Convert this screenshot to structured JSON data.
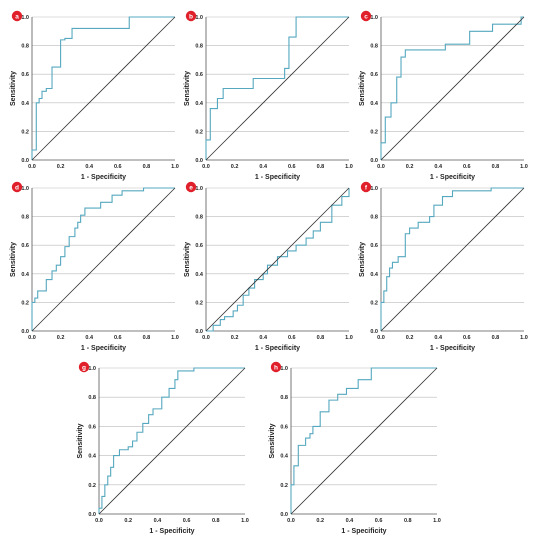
{
  "axes": {
    "xlabel": "1 - Specificity",
    "ylabel": "Sensitivity",
    "xlim": [
      0,
      1.0
    ],
    "ylim": [
      0,
      1.0
    ],
    "x_ticks": [
      "0.0",
      "0.2",
      "0.4",
      "0.6",
      "0.8",
      "1.0"
    ],
    "y_ticks": [
      "0.0",
      "0.2",
      "0.4",
      "0.6",
      "0.8",
      "1.0"
    ]
  },
  "colors": {
    "roc": "#55a8bf",
    "reference": "#333333",
    "grid": "#bbbbbb",
    "badge": "#e0202a"
  },
  "chart_data": [
    {
      "type": "line",
      "panel": "a",
      "grid": true,
      "series": [
        {
          "x": [
            0,
            0,
            0.03,
            0.03,
            0.05,
            0.05,
            0.07,
            0.07,
            0.1,
            0.1,
            0.14,
            0.14,
            0.2,
            0.2,
            0.23,
            0.23,
            0.28,
            0.28,
            0.68,
            0.68,
            0.85,
            0.85,
            1.0
          ],
          "y": [
            0,
            0.07,
            0.07,
            0.4,
            0.4,
            0.43,
            0.43,
            0.48,
            0.48,
            0.5,
            0.5,
            0.65,
            0.65,
            0.84,
            0.84,
            0.85,
            0.85,
            0.92,
            0.92,
            1.0,
            1.0,
            1.0,
            1.0
          ]
        },
        {
          "x": [
            0,
            1
          ],
          "y": [
            0,
            1
          ]
        }
      ]
    },
    {
      "type": "line",
      "panel": "b",
      "grid": true,
      "series": [
        {
          "x": [
            0,
            0,
            0.03,
            0.03,
            0.08,
            0.08,
            0.12,
            0.12,
            0.24,
            0.24,
            0.33,
            0.33,
            0.55,
            0.55,
            0.58,
            0.58,
            0.63,
            0.63,
            1.0
          ],
          "y": [
            0,
            0.14,
            0.14,
            0.36,
            0.36,
            0.43,
            0.43,
            0.5,
            0.5,
            0.5,
            0.5,
            0.57,
            0.57,
            0.64,
            0.64,
            0.86,
            0.86,
            1.0,
            1.0
          ]
        },
        {
          "x": [
            0,
            1
          ],
          "y": [
            0,
            1
          ]
        }
      ]
    },
    {
      "type": "line",
      "panel": "c",
      "grid": true,
      "series": [
        {
          "x": [
            0,
            0,
            0.03,
            0.03,
            0.07,
            0.07,
            0.11,
            0.11,
            0.14,
            0.14,
            0.17,
            0.17,
            0.45,
            0.45,
            0.62,
            0.62,
            0.78,
            0.78,
            0.98,
            0.98,
            1.0
          ],
          "y": [
            0,
            0.12,
            0.12,
            0.3,
            0.3,
            0.4,
            0.4,
            0.58,
            0.58,
            0.72,
            0.72,
            0.77,
            0.77,
            0.81,
            0.81,
            0.9,
            0.9,
            0.95,
            0.95,
            1.0,
            1.0
          ]
        },
        {
          "x": [
            0,
            1
          ],
          "y": [
            0,
            1
          ]
        }
      ]
    },
    {
      "type": "line",
      "panel": "d",
      "grid": true,
      "series": [
        {
          "x": [
            0,
            0,
            0.02,
            0.02,
            0.04,
            0.04,
            0.1,
            0.1,
            0.14,
            0.14,
            0.17,
            0.17,
            0.2,
            0.2,
            0.23,
            0.23,
            0.26,
            0.26,
            0.3,
            0.3,
            0.32,
            0.32,
            0.34,
            0.34,
            0.37,
            0.37,
            0.48,
            0.48,
            0.56,
            0.56,
            0.63,
            0.63,
            0.78,
            0.78,
            1.0
          ],
          "y": [
            0,
            0.2,
            0.2,
            0.23,
            0.23,
            0.28,
            0.28,
            0.36,
            0.36,
            0.42,
            0.42,
            0.46,
            0.46,
            0.52,
            0.52,
            0.59,
            0.59,
            0.66,
            0.66,
            0.72,
            0.72,
            0.76,
            0.76,
            0.81,
            0.81,
            0.86,
            0.86,
            0.9,
            0.9,
            0.95,
            0.95,
            0.98,
            0.98,
            1.0,
            1.0
          ]
        },
        {
          "x": [
            0,
            1
          ],
          "y": [
            0,
            1
          ]
        }
      ]
    },
    {
      "type": "line",
      "panel": "e",
      "grid": true,
      "series": [
        {
          "x": [
            0,
            0.05,
            0.05,
            0.1,
            0.1,
            0.13,
            0.13,
            0.19,
            0.19,
            0.22,
            0.22,
            0.26,
            0.26,
            0.3,
            0.3,
            0.34,
            0.34,
            0.4,
            0.4,
            0.43,
            0.43,
            0.5,
            0.5,
            0.57,
            0.57,
            0.63,
            0.63,
            0.7,
            0.7,
            0.75,
            0.75,
            0.8,
            0.8,
            0.88,
            0.88,
            0.95,
            0.95,
            1.0,
            1.0
          ],
          "y": [
            0,
            0,
            0.04,
            0.04,
            0.08,
            0.08,
            0.1,
            0.1,
            0.14,
            0.14,
            0.18,
            0.18,
            0.25,
            0.25,
            0.3,
            0.3,
            0.36,
            0.36,
            0.4,
            0.4,
            0.46,
            0.46,
            0.52,
            0.52,
            0.56,
            0.56,
            0.6,
            0.6,
            0.65,
            0.65,
            0.7,
            0.7,
            0.76,
            0.76,
            0.88,
            0.88,
            0.94,
            0.94,
            1.0
          ]
        },
        {
          "x": [
            0,
            1
          ],
          "y": [
            0,
            1
          ]
        }
      ]
    },
    {
      "type": "line",
      "panel": "f",
      "grid": true,
      "series": [
        {
          "x": [
            0,
            0,
            0.02,
            0.02,
            0.04,
            0.04,
            0.06,
            0.06,
            0.08,
            0.08,
            0.12,
            0.12,
            0.17,
            0.17,
            0.2,
            0.2,
            0.26,
            0.26,
            0.34,
            0.34,
            0.37,
            0.37,
            0.43,
            0.43,
            0.5,
            0.5,
            0.77,
            0.77,
            1.0
          ],
          "y": [
            0,
            0.2,
            0.2,
            0.28,
            0.28,
            0.38,
            0.38,
            0.44,
            0.44,
            0.48,
            0.48,
            0.52,
            0.52,
            0.68,
            0.68,
            0.72,
            0.72,
            0.76,
            0.76,
            0.8,
            0.8,
            0.88,
            0.88,
            0.94,
            0.94,
            0.98,
            0.98,
            1.0,
            1.0
          ]
        },
        {
          "x": [
            0,
            1
          ],
          "y": [
            0,
            1
          ]
        }
      ]
    },
    {
      "type": "line",
      "panel": "g",
      "grid": true,
      "series": [
        {
          "x": [
            0,
            0,
            0.02,
            0.02,
            0.04,
            0.04,
            0.06,
            0.06,
            0.08,
            0.08,
            0.1,
            0.1,
            0.14,
            0.14,
            0.2,
            0.2,
            0.23,
            0.23,
            0.26,
            0.26,
            0.3,
            0.3,
            0.34,
            0.34,
            0.37,
            0.37,
            0.43,
            0.43,
            0.48,
            0.48,
            0.52,
            0.52,
            0.54,
            0.54,
            0.65,
            0.65,
            1.0
          ],
          "y": [
            0,
            0.04,
            0.04,
            0.12,
            0.12,
            0.2,
            0.2,
            0.26,
            0.26,
            0.32,
            0.32,
            0.4,
            0.4,
            0.44,
            0.44,
            0.46,
            0.46,
            0.5,
            0.5,
            0.56,
            0.56,
            0.62,
            0.62,
            0.68,
            0.68,
            0.72,
            0.72,
            0.8,
            0.8,
            0.86,
            0.86,
            0.92,
            0.92,
            0.98,
            0.98,
            1.0,
            1.0
          ]
        },
        {
          "x": [
            0,
            1
          ],
          "y": [
            0,
            1
          ]
        }
      ]
    },
    {
      "type": "line",
      "panel": "h",
      "grid": true,
      "series": [
        {
          "x": [
            0,
            0,
            0.02,
            0.02,
            0.05,
            0.05,
            0.1,
            0.1,
            0.13,
            0.13,
            0.15,
            0.15,
            0.2,
            0.2,
            0.26,
            0.26,
            0.32,
            0.32,
            0.38,
            0.38,
            0.46,
            0.46,
            0.55,
            0.55,
            1.0
          ],
          "y": [
            0,
            0.2,
            0.2,
            0.33,
            0.33,
            0.47,
            0.47,
            0.52,
            0.52,
            0.55,
            0.55,
            0.6,
            0.6,
            0.7,
            0.7,
            0.78,
            0.78,
            0.82,
            0.82,
            0.86,
            0.86,
            0.92,
            0.92,
            1.0,
            1.0
          ]
        },
        {
          "x": [
            0,
            1
          ],
          "y": [
            0,
            1
          ]
        }
      ]
    }
  ]
}
